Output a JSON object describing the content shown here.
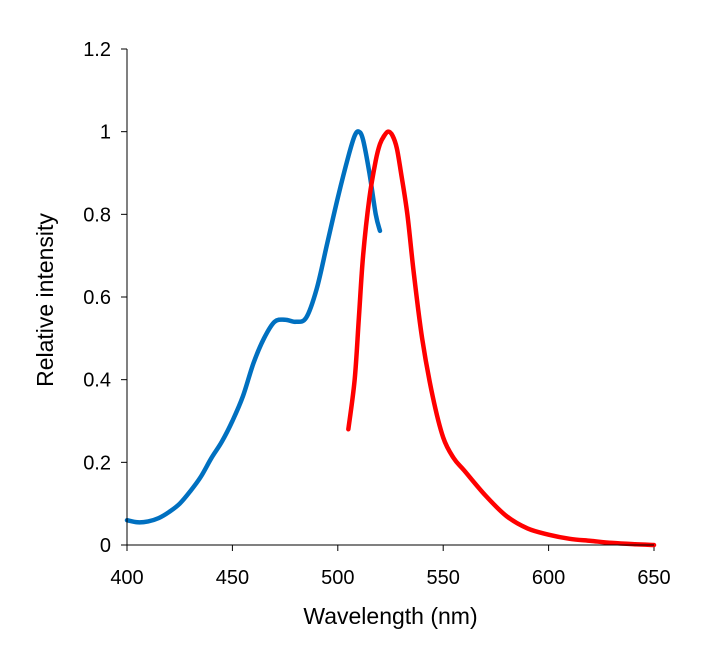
{
  "chart_data": {
    "type": "line",
    "xlabel": "Wavelength (nm)",
    "ylabel": "Relative intensity",
    "xlim": [
      400,
      650
    ],
    "ylim": [
      0,
      1.2
    ],
    "x_ticks": [
      400,
      450,
      500,
      550,
      600,
      650
    ],
    "y_ticks": [
      0,
      0.2,
      0.4,
      0.6,
      0.8,
      1,
      1.2
    ],
    "x_tick_labels": [
      "400",
      "450",
      "500",
      "550",
      "600",
      "650"
    ],
    "y_tick_labels": [
      "0",
      "0.2",
      "0.4",
      "0.6",
      "0.8",
      "1",
      "1.2"
    ],
    "grid": false,
    "legend": "none",
    "series": [
      {
        "color": "#0070c0",
        "x": [
          400,
          405,
          410,
          415,
          420,
          425,
          430,
          435,
          440,
          445,
          450,
          455,
          460,
          465,
          470,
          475,
          480,
          485,
          490,
          495,
          500,
          505,
          508,
          510,
          512,
          515,
          518,
          520
        ],
        "y": [
          0.06,
          0.055,
          0.057,
          0.065,
          0.08,
          0.1,
          0.13,
          0.165,
          0.21,
          0.25,
          0.3,
          0.36,
          0.44,
          0.5,
          0.54,
          0.545,
          0.54,
          0.55,
          0.62,
          0.73,
          0.84,
          0.94,
          0.99,
          1.0,
          0.98,
          0.9,
          0.8,
          0.76
        ]
      },
      {
        "color": "#ff0000",
        "x": [
          505,
          508,
          510,
          512,
          515,
          518,
          520,
          522,
          524,
          526,
          528,
          530,
          533,
          536,
          540,
          545,
          550,
          555,
          560,
          570,
          580,
          590,
          600,
          610,
          620,
          630,
          640,
          650
        ],
        "y": [
          0.28,
          0.4,
          0.55,
          0.7,
          0.84,
          0.93,
          0.97,
          0.99,
          1.0,
          0.99,
          0.96,
          0.9,
          0.8,
          0.66,
          0.5,
          0.36,
          0.26,
          0.21,
          0.18,
          0.12,
          0.07,
          0.04,
          0.025,
          0.015,
          0.01,
          0.005,
          0.002,
          0.0
        ]
      }
    ]
  }
}
